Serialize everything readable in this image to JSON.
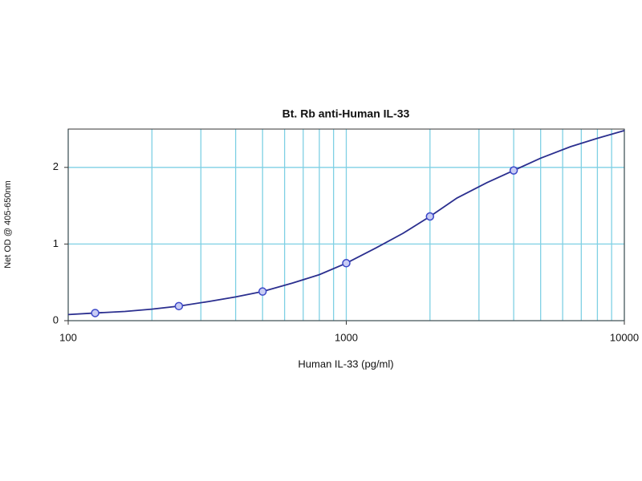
{
  "chart_data": {
    "type": "line",
    "title": "Bt. Rb anti-Human IL-33",
    "x_label": "Human IL-33 (pg/ml)",
    "y_label": "Net OD @ 405-650nm",
    "log_x": true,
    "grid": true,
    "grid_color": "#7fd0e4",
    "xlim": [
      100,
      10000
    ],
    "ylim": [
      0,
      2.5
    ],
    "xticks": [
      100,
      1000,
      10000
    ],
    "yticks": [
      0,
      1,
      2
    ],
    "x_minor_grid": [
      200,
      300,
      400,
      500,
      600,
      700,
      800,
      900,
      2000,
      3000,
      4000,
      5000,
      6000,
      7000,
      8000,
      9000
    ],
    "series": [
      {
        "color": "#2b2f8f",
        "line": true,
        "markers": false,
        "x": [
          100,
          125,
          160,
          200,
          250,
          320,
          400,
          500,
          640,
          800,
          1000,
          1280,
          1600,
          2000,
          2500,
          3200,
          4000,
          5000,
          6400,
          8000,
          10000
        ],
        "values": [
          0.08,
          0.1,
          0.12,
          0.15,
          0.19,
          0.25,
          0.31,
          0.38,
          0.49,
          0.6,
          0.75,
          0.95,
          1.14,
          1.36,
          1.6,
          1.8,
          1.96,
          2.12,
          2.27,
          2.38,
          2.48
        ]
      },
      {
        "color": "#3a46c8",
        "line": false,
        "markers": true,
        "x": [
          125,
          250,
          500,
          1000,
          2000,
          4000
        ],
        "values": [
          0.1,
          0.19,
          0.38,
          0.75,
          1.36,
          1.96
        ]
      }
    ]
  }
}
